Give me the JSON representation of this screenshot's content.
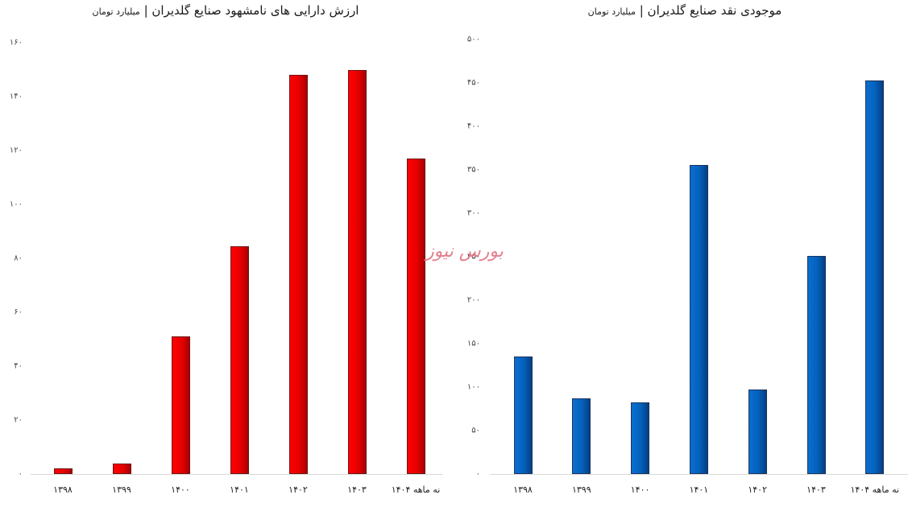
{
  "chart_data": [
    {
      "type": "bar",
      "title": "ارزش دارایی های نامشهود صنایع گلدیران",
      "subtitle": "میلیارد تومان",
      "categories": [
        "۱۳۹۸",
        "۱۳۹۹",
        "۱۴۰۰",
        "۱۴۰۱",
        "۱۴۰۲",
        "۱۴۰۳",
        "نه ماهه ۱۴۰۴"
      ],
      "values": [
        2,
        4,
        51,
        84.5,
        148,
        150,
        117
      ],
      "xlabel": "",
      "ylabel": "",
      "ylim": [
        0,
        160
      ],
      "yticks": [
        "۰",
        "۲۰",
        "۴۰",
        "۶۰",
        "۸۰",
        "۱۰۰",
        "۱۲۰",
        "۱۴۰",
        "۱۶۰"
      ],
      "grid": false,
      "legend": "none",
      "color": "#e60000"
    },
    {
      "type": "bar",
      "title": "موجودی نقد صنایع گلدیران",
      "subtitle": "میلیارد تومان",
      "categories": [
        "۱۳۹۸",
        "۱۳۹۹",
        "۱۴۰۰",
        "۱۴۰۱",
        "۱۴۰۲",
        "۱۴۰۳",
        "نه ماهه ۱۴۰۴"
      ],
      "values": [
        135,
        87,
        82,
        356,
        97,
        251,
        453
      ],
      "xlabel": "",
      "ylabel": "",
      "ylim": [
        0,
        500
      ],
      "yticks": [
        "۰",
        "۵۰",
        "۱۰۰",
        "۱۵۰",
        "۲۰۰",
        "۲۵۰",
        "۳۰۰",
        "۳۵۰",
        "۴۰۰",
        "۴۵۰",
        "۵۰۰"
      ],
      "grid": false,
      "legend": "none",
      "color": "#0560bb"
    }
  ],
  "left": {
    "title": "ارزش دارایی های نامشهود صنایع گلدیران",
    "separator": " | ",
    "unit": "میلیارد تومان"
  },
  "right": {
    "title": "موجودی نقد صنایع گلدیران",
    "separator": " | ",
    "unit": "میلیارد تومان"
  },
  "watermark": "بورس نیوز"
}
